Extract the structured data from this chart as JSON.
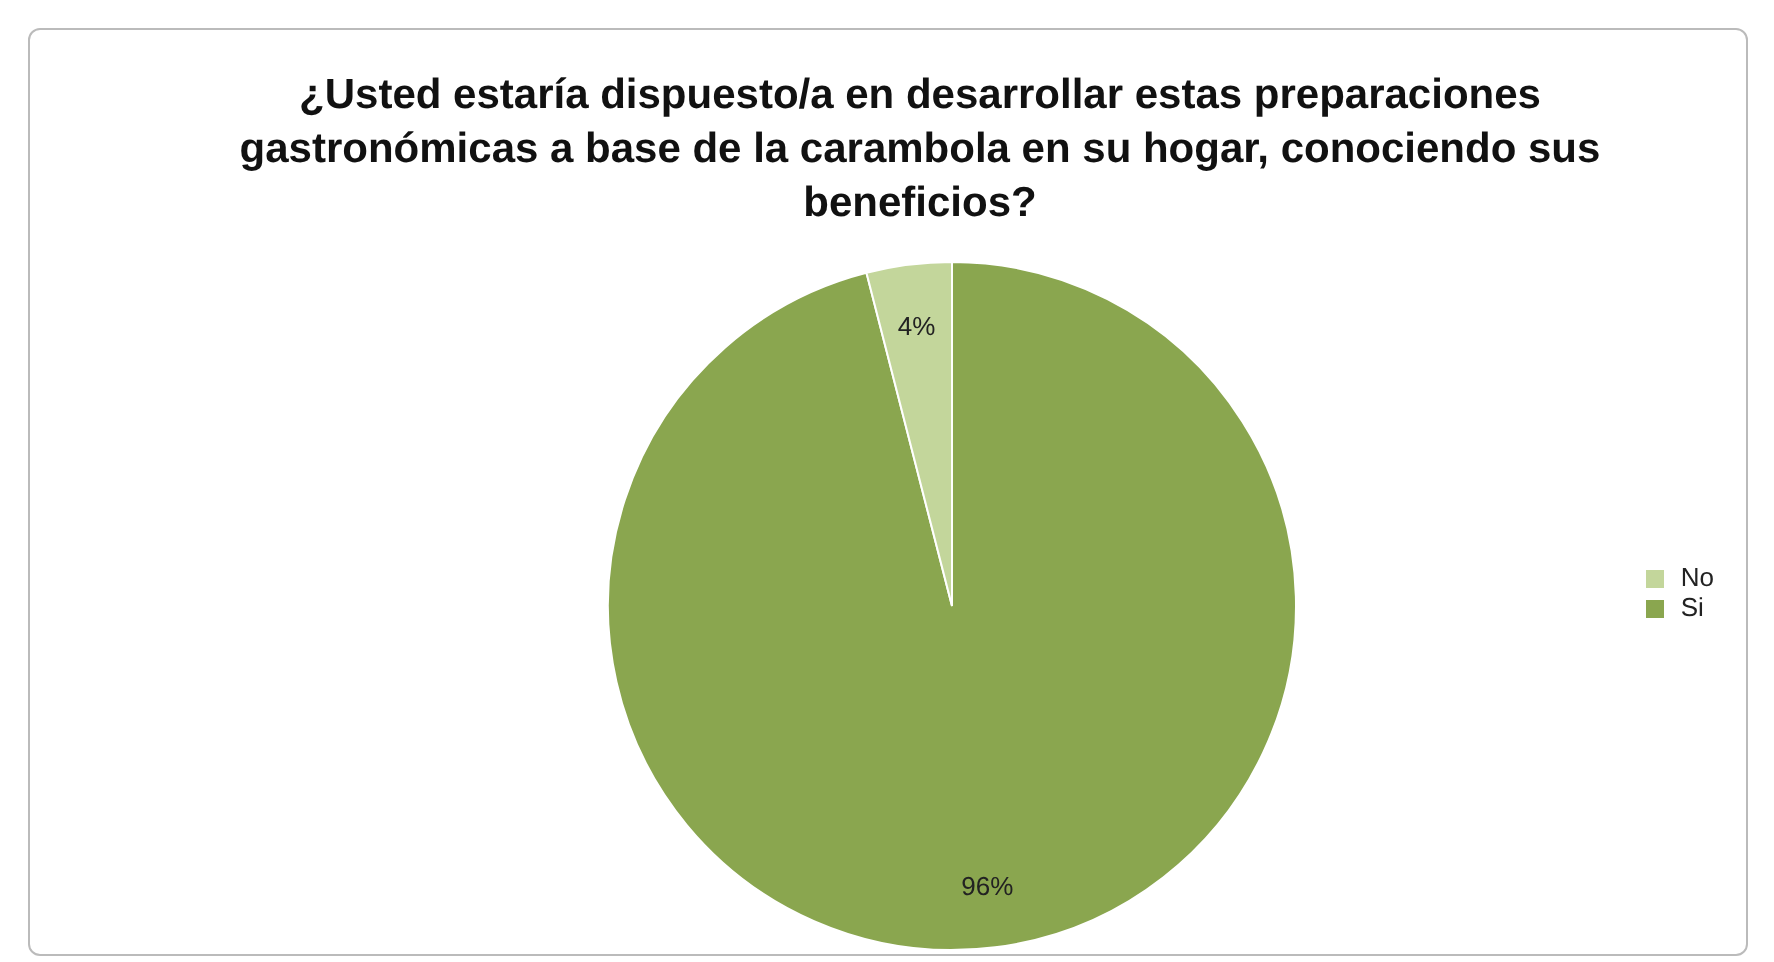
{
  "chart_data": {
    "type": "pie",
    "title": "¿Usted estaría dispuesto/a en desarrollar estas preparaciones gastronómicas a base de la carambola en su hogar, conociendo sus beneficios?",
    "categories": [
      "Si",
      "No"
    ],
    "values": [
      96,
      4
    ],
    "colors": [
      "#8aa64f",
      "#c3d69b"
    ],
    "value_labels": [
      "96%",
      "4%"
    ],
    "legend": "right"
  }
}
